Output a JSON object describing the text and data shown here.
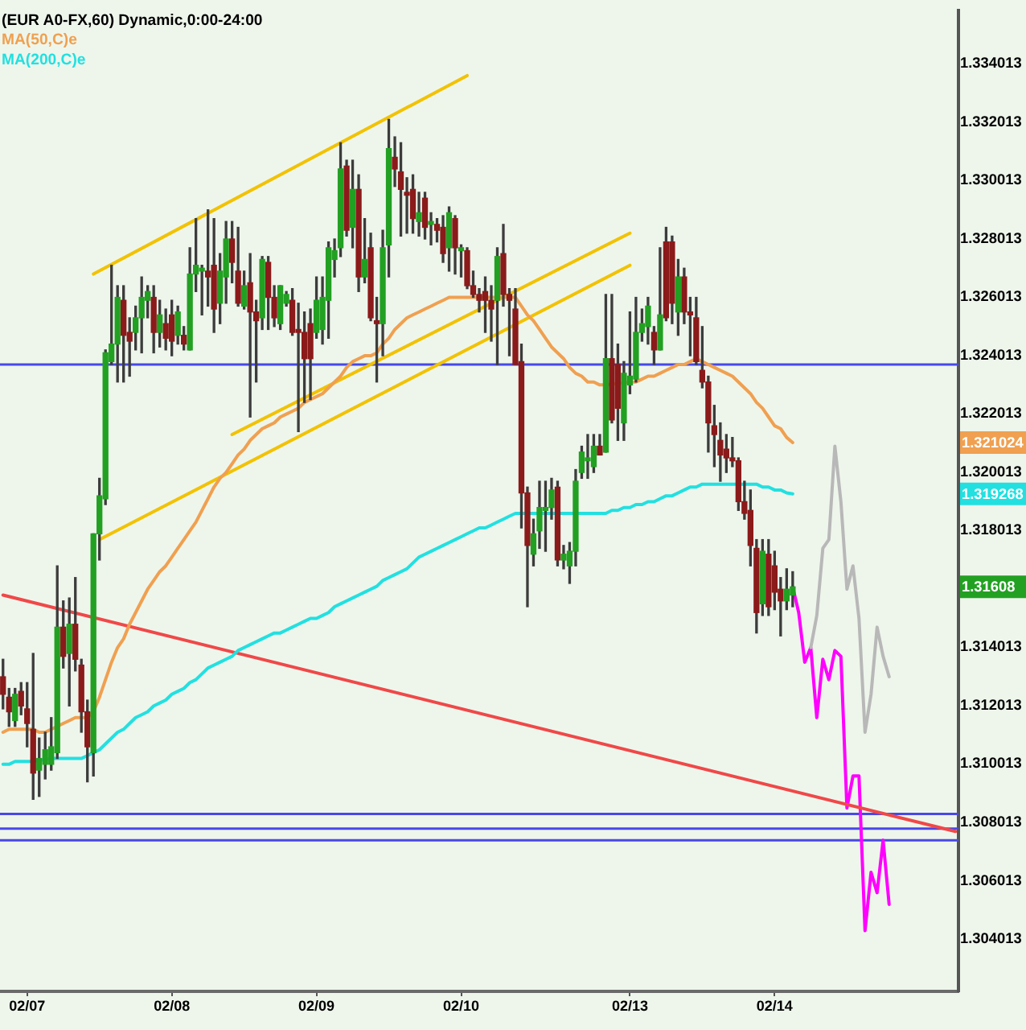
{
  "chart_data": {
    "type": "candlestick",
    "title": "(EUR A0-FX,60) Dynamic,0:00-24:00",
    "categories": [
      null,
      null,
      null,
      null,
      "02/07",
      null,
      null,
      null,
      null,
      null,
      null,
      null,
      null,
      null,
      null,
      null,
      null,
      null,
      null,
      null,
      null,
      null,
      null,
      null,
      null,
      null,
      null,
      null,
      "02/08",
      null,
      null,
      null,
      null,
      null,
      null,
      null,
      null,
      null,
      null,
      null,
      null,
      null,
      null,
      null,
      null,
      null,
      null,
      null,
      null,
      null,
      null,
      null,
      "02/09",
      null,
      null,
      null,
      null,
      null,
      null,
      null,
      null,
      null,
      null,
      null,
      null,
      null,
      null,
      null,
      null,
      null,
      null,
      null,
      null,
      null,
      null,
      null,
      "02/10",
      null,
      null,
      null,
      null,
      null,
      null,
      null,
      null,
      null,
      null,
      null,
      null,
      null,
      null,
      null,
      null,
      null,
      null,
      null,
      null,
      null,
      null,
      null,
      null,
      null,
      null,
      null,
      "02/13",
      null,
      null,
      null,
      null,
      null,
      null,
      null,
      null,
      null,
      null,
      null,
      null,
      null,
      null,
      null,
      null,
      null,
      null,
      null,
      null,
      null,
      null,
      null,
      "02/14",
      null,
      null,
      null,
      null,
      null,
      null,
      null,
      null,
      null,
      null,
      null,
      null,
      null,
      null,
      null,
      null,
      null,
      null,
      null,
      null,
      null,
      null,
      null,
      null,
      null,
      null,
      null,
      null,
      null,
      null
    ],
    "ohlc": [
      [
        1.313,
        1.3136,
        1.3119,
        1.3124
      ],
      [
        1.3123,
        1.3126,
        1.3113,
        1.3118
      ],
      [
        1.3115,
        1.3126,
        1.3113,
        1.3124
      ],
      [
        1.3125,
        1.3128,
        1.3117,
        1.312
      ],
      [
        1.3119,
        1.3128,
        1.3106,
        1.3114
      ],
      [
        1.3112,
        1.3138,
        1.3088,
        1.3097
      ],
      [
        1.3098,
        1.3109,
        1.3089,
        1.3102
      ],
      [
        1.31,
        1.3111,
        1.3095,
        1.3105
      ],
      [
        1.31,
        1.3116,
        1.3098,
        1.3106
      ],
      [
        1.3104,
        1.3168,
        1.3102,
        1.3147
      ],
      [
        1.3147,
        1.3156,
        1.3133,
        1.3137
      ],
      [
        1.3138,
        1.3157,
        1.312,
        1.3148
      ],
      [
        1.3148,
        1.3164,
        1.3132,
        1.3136
      ],
      [
        1.3134,
        1.3136,
        1.3111,
        1.3118
      ],
      [
        1.3118,
        1.3122,
        1.3094,
        1.3106
      ],
      [
        1.3104,
        1.3179,
        1.3096,
        1.3179
      ],
      [
        1.3179,
        1.3198,
        1.317,
        1.3192
      ],
      [
        1.3191,
        1.3242,
        1.3189,
        1.3241
      ],
      [
        1.3238,
        1.3271,
        1.3237,
        1.3244
      ],
      [
        1.3244,
        1.3264,
        1.3231,
        1.326
      ],
      [
        1.3259,
        1.3264,
        1.3231,
        1.3247
      ],
      [
        1.3248,
        1.3253,
        1.3233,
        1.3245
      ],
      [
        1.3248,
        1.3257,
        1.3242,
        1.3253
      ],
      [
        1.3253,
        1.3267,
        1.3241,
        1.326
      ],
      [
        1.3259,
        1.3264,
        1.3253,
        1.3262
      ],
      [
        1.326,
        1.3264,
        1.3241,
        1.3248
      ],
      [
        1.3248,
        1.3259,
        1.3243,
        1.3254
      ],
      [
        1.3251,
        1.3256,
        1.3242,
        1.3246
      ],
      [
        1.3254,
        1.3259,
        1.324,
        1.3245
      ],
      [
        1.3247,
        1.3257,
        1.3244,
        1.3255
      ],
      [
        1.3247,
        1.325,
        1.3242,
        1.3244
      ],
      [
        1.3242,
        1.3277,
        1.3242,
        1.3268
      ],
      [
        1.3268,
        1.3287,
        1.3262,
        1.3271
      ],
      [
        1.3269,
        1.3271,
        1.3254,
        1.327
      ],
      [
        1.3269,
        1.329,
        1.3257,
        1.3267
      ],
      [
        1.3271,
        1.3287,
        1.3248,
        1.3256
      ],
      [
        1.3258,
        1.3275,
        1.3251,
        1.3269
      ],
      [
        1.3267,
        1.3286,
        1.3258,
        1.328
      ],
      [
        1.328,
        1.3286,
        1.3265,
        1.3272
      ],
      [
        1.3269,
        1.3284,
        1.3257,
        1.3258
      ],
      [
        1.3257,
        1.3269,
        1.3256,
        1.3264
      ],
      [
        1.3265,
        1.3275,
        1.3219,
        1.3255
      ],
      [
        1.3255,
        1.3259,
        1.3231,
        1.3252
      ],
      [
        1.3253,
        1.3274,
        1.3249,
        1.3273
      ],
      [
        1.3272,
        1.3274,
        1.3249,
        1.326
      ],
      [
        1.326,
        1.3264,
        1.325,
        1.3253
      ],
      [
        1.3251,
        1.3264,
        1.3249,
        1.3264
      ],
      [
        1.3258,
        1.3262,
        1.3257,
        1.3261
      ],
      [
        1.3259,
        1.3263,
        1.3247,
        1.3248
      ],
      [
        1.3249,
        1.3258,
        1.3214,
        1.3248
      ],
      [
        1.3248,
        1.3255,
        1.3224,
        1.3239
      ],
      [
        1.3251,
        1.3256,
        1.3225,
        1.3239
      ],
      [
        1.3248,
        1.3267,
        1.3246,
        1.3259
      ],
      [
        1.3249,
        1.3267,
        1.3244,
        1.326
      ],
      [
        1.3259,
        1.3279,
        1.3246,
        1.3277
      ],
      [
        1.3273,
        1.328,
        1.3267,
        1.3276
      ],
      [
        1.3277,
        1.3313,
        1.3274,
        1.3304
      ],
      [
        1.3305,
        1.3307,
        1.3281,
        1.3283
      ],
      [
        1.3284,
        1.3307,
        1.3277,
        1.3297
      ],
      [
        1.3297,
        1.3302,
        1.3262,
        1.3267
      ],
      [
        1.3267,
        1.3287,
        1.3265,
        1.3273
      ],
      [
        1.3277,
        1.3282,
        1.3252,
        1.3253
      ],
      [
        1.3252,
        1.326,
        1.3231,
        1.3251
      ],
      [
        1.3251,
        1.3283,
        1.324,
        1.3277
      ],
      [
        1.3278,
        1.3321,
        1.3267,
        1.3311
      ],
      [
        1.3308,
        1.3315,
        1.3298,
        1.3304
      ],
      [
        1.3303,
        1.3313,
        1.3281,
        1.3297
      ],
      [
        1.3296,
        1.3301,
        1.3282,
        1.3295
      ],
      [
        1.3297,
        1.3302,
        1.3282,
        1.3287
      ],
      [
        1.3286,
        1.3296,
        1.3281,
        1.3289
      ],
      [
        1.3294,
        1.3296,
        1.328,
        1.3284
      ],
      [
        1.3285,
        1.3289,
        1.3278,
        1.3286
      ],
      [
        1.3285,
        1.3287,
        1.3279,
        1.3283
      ],
      [
        1.3284,
        1.3288,
        1.3272,
        1.3275
      ],
      [
        1.3277,
        1.3291,
        1.3269,
        1.3289
      ],
      [
        1.3287,
        1.3288,
        1.3268,
        1.3277
      ],
      [
        1.3276,
        1.3278,
        1.3267,
        1.3277
      ],
      [
        1.3276,
        1.3277,
        1.3263,
        1.3264
      ],
      [
        1.3264,
        1.3269,
        1.326,
        1.3261
      ],
      [
        1.3261,
        1.3263,
        1.3255,
        1.3259
      ],
      [
        1.3262,
        1.3267,
        1.3248,
        1.3259
      ],
      [
        1.3259,
        1.3264,
        1.3245,
        1.3256
      ],
      [
        1.3259,
        1.3277,
        1.3237,
        1.3274
      ],
      [
        1.3275,
        1.3285,
        1.3257,
        1.3261
      ],
      [
        1.3261,
        1.3263,
        1.324,
        1.3259
      ],
      [
        1.3256,
        1.3263,
        1.3237,
        1.3237
      ],
      [
        1.3238,
        1.3244,
        1.3181,
        1.3193
      ],
      [
        1.3193,
        1.3195,
        1.3154,
        1.3175
      ],
      [
        1.3172,
        1.3184,
        1.3168,
        1.3179
      ],
      [
        1.318,
        1.3197,
        1.3174,
        1.3188
      ],
      [
        1.3187,
        1.3197,
        1.3173,
        1.3188
      ],
      [
        1.3188,
        1.3198,
        1.3184,
        1.3194
      ],
      [
        1.3195,
        1.3197,
        1.3168,
        1.317
      ],
      [
        1.317,
        1.3175,
        1.3167,
        1.3172
      ],
      [
        1.3168,
        1.3176,
        1.3162,
        1.3173
      ],
      [
        1.3173,
        1.3201,
        1.3168,
        1.3197
      ],
      [
        1.32,
        1.3209,
        1.3198,
        1.3207
      ],
      [
        1.3204,
        1.3213,
        1.3198,
        1.3205
      ],
      [
        1.3202,
        1.3213,
        1.32,
        1.3209
      ],
      [
        1.3209,
        1.3213,
        1.3206,
        1.3206
      ],
      [
        1.3207,
        1.3261,
        1.3207,
        1.3239
      ],
      [
        1.3239,
        1.3261,
        1.3217,
        1.3218
      ],
      [
        1.3237,
        1.3244,
        1.3211,
        1.3222
      ],
      [
        1.3217,
        1.3238,
        1.3211,
        1.3234
      ],
      [
        1.323,
        1.3255,
        1.3227,
        1.3233
      ],
      [
        1.3232,
        1.326,
        1.3231,
        1.3248
      ],
      [
        1.3248,
        1.3256,
        1.3245,
        1.3251
      ],
      [
        1.325,
        1.326,
        1.3244,
        1.3257
      ],
      [
        1.3248,
        1.325,
        1.3237,
        1.3242
      ],
      [
        1.3242,
        1.3277,
        1.3242,
        1.3254
      ],
      [
        1.3279,
        1.3284,
        1.3252,
        1.3253
      ],
      [
        1.3279,
        1.3281,
        1.3251,
        1.3258
      ],
      [
        1.3255,
        1.3273,
        1.3247,
        1.3267
      ],
      [
        1.3267,
        1.327,
        1.3251,
        1.3255
      ],
      [
        1.3255,
        1.326,
        1.324,
        1.3254
      ],
      [
        1.3253,
        1.326,
        1.3237,
        1.3238
      ],
      [
        1.3235,
        1.325,
        1.3229,
        1.3231
      ],
      [
        1.3231,
        1.3233,
        1.3207,
        1.3217
      ],
      [
        1.3216,
        1.3223,
        1.3202,
        1.3213
      ],
      [
        1.3211,
        1.3217,
        1.3197,
        1.3206
      ],
      [
        1.3208,
        1.3213,
        1.32,
        1.3205
      ],
      [
        1.3205,
        1.3212,
        1.3202,
        1.3204
      ],
      [
        1.3204,
        1.3205,
        1.3187,
        1.319
      ],
      [
        1.319,
        1.3197,
        1.3184,
        1.3186
      ],
      [
        1.3187,
        1.3194,
        1.3168,
        1.3175
      ],
      [
        1.3174,
        1.3177,
        1.3145,
        1.3152
      ],
      [
        1.3155,
        1.3177,
        1.3151,
        1.3173
      ],
      [
        1.3172,
        1.3177,
        1.3151,
        1.3154
      ],
      [
        1.3168,
        1.3173,
        1.3153,
        1.3159
      ],
      [
        1.316,
        1.3164,
        1.3144,
        1.3156
      ],
      [
        1.3156,
        1.3167,
        1.3153,
        1.316
      ],
      [
        1.3158,
        1.3166,
        1.3154,
        1.31608
      ],
      null,
      null,
      null,
      null,
      null,
      null,
      null,
      null,
      null,
      null,
      null,
      null,
      null,
      null,
      null,
      null,
      null,
      null,
      null,
      null,
      null,
      null,
      null,
      null,
      null,
      null,
      null
    ],
    "colors": [
      "#8b1a1a",
      "#8b1a1a",
      "#22a022",
      "#8b1a1a",
      "#8b1a1a",
      "#8b1a1a",
      "#22a022",
      "#22a022",
      "#22a022",
      "#22a022",
      "#8b1a1a",
      "#22a022",
      "#8b1a1a",
      "#8b1a1a",
      "#8b1a1a",
      "#22a022",
      "#22a022",
      "#22a022",
      "#22a022",
      "#22a022",
      "#8b1a1a",
      "#8b1a1a",
      "#22a022",
      "#22a022",
      "#22a022",
      "#8b1a1a",
      "#22a022",
      "#8b1a1a",
      "#8b1a1a",
      "#22a022",
      "#8b1a1a",
      "#22a022",
      "#22a022",
      "#22a022",
      "#8b1a1a",
      "#8b1a1a",
      "#22a022",
      "#22a022",
      "#8b1a1a",
      "#8b1a1a",
      "#22a022",
      "#8b1a1a",
      "#8b1a1a",
      "#22a022",
      "#8b1a1a",
      "#8b1a1a",
      "#22a022",
      "#22a022",
      "#8b1a1a",
      "#8b1a1a",
      "#8b1a1a",
      "#8b1a1a",
      "#22a022",
      "#22a022",
      "#22a022",
      "#22a022",
      "#22a022",
      "#8b1a1a",
      "#22a022",
      "#8b1a1a",
      "#22a022",
      "#8b1a1a",
      "#8b1a1a",
      "#22a022",
      "#22a022",
      "#8b1a1a",
      "#8b1a1a",
      "#8b1a1a",
      "#8b1a1a",
      "#22a022",
      "#8b1a1a",
      "#22a022",
      "#8b1a1a",
      "#8b1a1a",
      "#22a022",
      "#8b1a1a",
      "#22a022",
      "#8b1a1a",
      "#8b1a1a",
      "#8b1a1a",
      "#8b1a1a",
      "#8b1a1a",
      "#22a022",
      "#8b1a1a",
      "#8b1a1a",
      "#8b1a1a",
      "#8b1a1a",
      "#8b1a1a",
      "#22a022",
      "#22a022",
      "#22a022",
      "#22a022",
      "#8b1a1a",
      "#22a022",
      "#22a022",
      "#22a022",
      "#22a022",
      "#22a022",
      "#22a022",
      "#8b1a1a",
      "#22a022",
      "#8b1a1a",
      "#8b1a1a",
      "#22a022",
      "#22a022",
      "#22a022",
      "#22a022",
      "#22a022",
      "#8b1a1a",
      "#22a022",
      "#8b1a1a",
      "#8b1a1a",
      "#22a022",
      "#8b1a1a",
      "#8b1a1a",
      "#8b1a1a",
      "#8b1a1a",
      "#8b1a1a",
      "#8b1a1a",
      "#8b1a1a",
      "#8b1a1a",
      "#8b1a1a",
      "#8b1a1a",
      "#8b1a1a",
      "#8b1a1a",
      "#8b1a1a",
      "#22a022",
      "#8b1a1a",
      "#8b1a1a",
      "#8b1a1a",
      "#22a022",
      "#22a022",
      null,
      null,
      null,
      null,
      null,
      null,
      null,
      null,
      null,
      null,
      null,
      null,
      null,
      null,
      null,
      null,
      null,
      null,
      null,
      null,
      null,
      null,
      null,
      null,
      null,
      null,
      null
    ],
    "series": [
      {
        "name": "MA(50,C)e",
        "type": "line",
        "color": "#f0a050",
        "values": [
          1.3111,
          1.3112,
          1.3112,
          1.3112,
          1.3112,
          1.3112,
          1.3111,
          1.3111,
          1.3112,
          1.3113,
          1.3114,
          1.3115,
          1.3116,
          1.3116,
          1.3116,
          1.3118,
          1.3123,
          1.3129,
          1.3135,
          1.314,
          1.3143,
          1.3148,
          1.3152,
          1.3156,
          1.316,
          1.3163,
          1.3166,
          1.3168,
          1.3171,
          1.3174,
          1.3177,
          1.318,
          1.3183,
          1.3187,
          1.3191,
          1.3195,
          1.3198,
          1.32,
          1.3203,
          1.3206,
          1.3208,
          1.3211,
          1.3213,
          1.3215,
          1.3216,
          1.3217,
          1.3219,
          1.322,
          1.3221,
          1.3222,
          1.3224,
          1.3225,
          1.3226,
          1.3227,
          1.3229,
          1.3231,
          1.3233,
          1.3236,
          1.3238,
          1.3239,
          1.324,
          1.324,
          1.3241,
          1.3244,
          1.3246,
          1.3249,
          1.3251,
          1.3253,
          1.3254,
          1.3255,
          1.3256,
          1.3257,
          1.3258,
          1.3259,
          1.326,
          1.326,
          1.326,
          1.326,
          1.326,
          1.326,
          1.326,
          1.326,
          1.326,
          1.326,
          1.326,
          1.326,
          1.3257,
          1.3254,
          1.3252,
          1.3249,
          1.3246,
          1.3243,
          1.3241,
          1.3239,
          1.3236,
          1.3234,
          1.3233,
          1.3231,
          1.3231,
          1.323,
          1.323,
          null,
          null,
          null,
          1.3231,
          1.3231,
          1.3232,
          1.3233,
          1.3233,
          1.3234,
          1.3235,
          1.3236,
          1.3237,
          1.3237,
          1.3238,
          1.3239,
          1.3238,
          1.3237,
          1.3236,
          1.3235,
          1.3234,
          1.3233,
          1.3231,
          1.3229,
          1.3227,
          1.3224,
          1.3222,
          1.3219,
          1.3216,
          1.3215,
          1.3212,
          1.321024,
          null,
          null,
          null,
          null,
          null,
          null,
          null,
          null,
          null,
          null,
          null,
          null,
          null,
          null,
          null,
          null,
          null,
          null,
          null,
          null,
          null,
          null,
          null,
          null,
          null,
          null,
          null
        ]
      },
      {
        "name": "MA(200,C)e",
        "type": "line",
        "color": "#22e0e0",
        "values": [
          1.31,
          1.31,
          1.3101,
          1.3101,
          1.3101,
          1.3101,
          null,
          null,
          1.3102,
          1.3102,
          1.3102,
          1.3102,
          1.3102,
          1.3102,
          1.3103,
          1.3104,
          1.3105,
          1.3107,
          1.3109,
          1.3111,
          1.3112,
          1.3114,
          1.3116,
          1.3117,
          1.3118,
          1.312,
          1.3121,
          1.3122,
          1.3124,
          1.3125,
          1.3126,
          1.3128,
          1.3129,
          1.3131,
          1.3133,
          1.3134,
          1.3135,
          1.3136,
          1.3137,
          1.3139,
          1.314,
          1.3141,
          1.3142,
          1.3143,
          1.3144,
          1.3145,
          1.3145,
          1.3146,
          1.3147,
          1.3148,
          1.3149,
          1.315,
          1.315,
          1.3151,
          1.3152,
          1.3154,
          1.3155,
          1.3156,
          1.3157,
          1.3158,
          1.3159,
          1.316,
          1.3161,
          1.3163,
          1.3164,
          1.3165,
          1.3166,
          1.3167,
          1.3169,
          1.3171,
          1.3172,
          1.3173,
          1.3174,
          1.3175,
          1.3176,
          1.3177,
          1.3178,
          1.3179,
          1.318,
          1.3181,
          1.3181,
          1.3182,
          1.3183,
          1.3184,
          1.3185,
          1.3186,
          1.3186,
          1.3186,
          1.3186,
          1.3186,
          1.3186,
          1.3186,
          1.3186,
          1.3186,
          1.3186,
          1.3186,
          1.3186,
          1.3186,
          1.3186,
          1.3186,
          1.3186,
          1.3187,
          1.3187,
          1.3188,
          1.3188,
          1.3189,
          1.3189,
          1.319,
          1.319,
          1.3191,
          1.3192,
          1.3192,
          1.3193,
          1.3194,
          1.3195,
          1.3195,
          1.3196,
          1.3196,
          1.3196,
          1.3196,
          1.3196,
          1.3196,
          1.3196,
          1.3196,
          1.3196,
          1.3196,
          1.3195,
          1.3195,
          1.3194,
          1.3194,
          1.3193,
          1.319268,
          null,
          null,
          null,
          null,
          null,
          null,
          null,
          null,
          null,
          null,
          null,
          null,
          null,
          null,
          null,
          null,
          null,
          null,
          null,
          null,
          null,
          null,
          null,
          null,
          null,
          null,
          null
        ]
      },
      {
        "type": "line",
        "color": "#f2c200",
        "values": [
          null,
          null,
          null,
          null,
          null,
          null,
          null,
          null,
          null,
          null,
          null,
          null,
          null,
          null,
          null,
          1.3268,
          null,
          null,
          null,
          null,
          null,
          null,
          null,
          null,
          null,
          null,
          null,
          null,
          null,
          null,
          null,
          null,
          null,
          null,
          null,
          null,
          null,
          null,
          null,
          null,
          null,
          null,
          null,
          null,
          null,
          null,
          null,
          null,
          null,
          null,
          null,
          null,
          null,
          null,
          null,
          null,
          null,
          null,
          null,
          null,
          null,
          null,
          null,
          null,
          null,
          null,
          null,
          null,
          null,
          null,
          null,
          null,
          null,
          null,
          null,
          null,
          null,
          1.3336,
          null,
          null,
          null,
          null,
          null,
          null,
          null,
          null,
          null,
          null,
          null,
          null,
          null,
          null,
          null,
          null,
          null,
          null,
          null,
          null,
          null,
          null,
          null,
          null,
          null,
          null,
          null,
          null,
          null,
          null,
          null,
          null,
          null,
          null,
          null,
          null,
          null,
          null,
          null,
          null,
          null,
          null,
          null,
          null,
          null,
          null,
          null,
          null,
          null,
          null,
          null,
          null,
          null,
          null,
          null,
          null,
          null,
          null,
          null,
          null,
          null,
          null,
          null,
          null,
          null,
          null,
          null,
          null,
          null,
          null,
          null,
          null,
          null,
          null,
          null,
          null,
          null,
          null,
          null,
          null,
          null
        ]
      },
      {
        "type": "line",
        "color": "#f2c200",
        "values": [
          null,
          null,
          null,
          null,
          null,
          null,
          null,
          null,
          null,
          null,
          null,
          null,
          null,
          null,
          null,
          null,
          1.3177,
          null,
          null,
          null,
          null,
          null,
          null,
          null,
          null,
          null,
          null,
          null,
          null,
          null,
          null,
          null,
          null,
          null,
          null,
          null,
          null,
          null,
          null,
          null,
          null,
          null,
          null,
          null,
          null,
          null,
          null,
          null,
          null,
          null,
          null,
          null,
          null,
          null,
          null,
          null,
          null,
          null,
          null,
          null,
          null,
          null,
          null,
          null,
          null,
          null,
          null,
          null,
          null,
          null,
          null,
          null,
          null,
          null,
          null,
          null,
          null,
          null,
          null,
          null,
          null,
          null,
          null,
          null,
          null,
          null,
          null,
          null,
          null,
          null,
          null,
          null,
          null,
          null,
          null,
          null,
          null,
          null,
          null,
          null,
          null,
          null,
          null,
          null,
          1.3271,
          null,
          null,
          null,
          null,
          null,
          null,
          null,
          null,
          null,
          null,
          null,
          null,
          null,
          null,
          null,
          null,
          null,
          null,
          null,
          null,
          null,
          null,
          null,
          null,
          null,
          null,
          null,
          null,
          null,
          null,
          null,
          null,
          null,
          null,
          null,
          null,
          null,
          null,
          null,
          null,
          null,
          null,
          null,
          null,
          null,
          null,
          null,
          null,
          null,
          null,
          null,
          null,
          null,
          null
        ]
      },
      {
        "type": "line",
        "color": "#f2c200",
        "values": [
          null,
          null,
          null,
          null,
          null,
          null,
          null,
          null,
          null,
          null,
          null,
          null,
          null,
          null,
          null,
          null,
          null,
          null,
          null,
          null,
          null,
          null,
          null,
          null,
          null,
          null,
          null,
          null,
          null,
          null,
          null,
          null,
          null,
          null,
          null,
          null,
          null,
          null,
          1.3213,
          null,
          null,
          null,
          null,
          null,
          null,
          null,
          null,
          null,
          null,
          null,
          null,
          null,
          null,
          null,
          null,
          null,
          null,
          null,
          null,
          null,
          null,
          null,
          null,
          null,
          null,
          null,
          null,
          null,
          null,
          null,
          null,
          null,
          null,
          null,
          null,
          null,
          null,
          null,
          null,
          null,
          null,
          null,
          null,
          null,
          null,
          null,
          null,
          null,
          null,
          null,
          null,
          null,
          null,
          null,
          null,
          null,
          null,
          null,
          null,
          null,
          null,
          null,
          null,
          null,
          1.3282,
          null,
          null,
          null,
          null,
          null,
          null,
          null,
          null,
          null,
          null,
          null,
          null,
          null,
          null,
          null,
          null,
          null,
          null,
          null,
          null,
          null,
          null,
          null,
          null,
          null,
          null,
          null,
          null,
          null,
          null,
          null,
          null,
          null,
          null,
          null,
          null,
          null,
          null,
          null,
          null,
          null,
          null,
          null,
          null,
          null,
          null,
          null,
          null,
          null,
          null,
          null,
          null,
          null,
          null
        ]
      },
      {
        "type": "line",
        "color": "#f04848",
        "values": [
          1.3158,
          null,
          null,
          null,
          null,
          null,
          null,
          null,
          null,
          null,
          null,
          null,
          null,
          null,
          null,
          null,
          null,
          null,
          null,
          null,
          null,
          null,
          null,
          null,
          null,
          null,
          null,
          null,
          null,
          null,
          null,
          null,
          null,
          null,
          null,
          null,
          null,
          null,
          null,
          null,
          null,
          null,
          null,
          null,
          null,
          null,
          null,
          null,
          null,
          null,
          null,
          null,
          null,
          null,
          null,
          null,
          null,
          null,
          null,
          null,
          null,
          null,
          null,
          null,
          null,
          null,
          null,
          null,
          null,
          null,
          null,
          null,
          null,
          null,
          null,
          null,
          null,
          null,
          null,
          null,
          null,
          null,
          null,
          null,
          null,
          null,
          null,
          null,
          null,
          null,
          null,
          null,
          null,
          null,
          null,
          null,
          null,
          null,
          null,
          null,
          null,
          null,
          null,
          null,
          null,
          null,
          null,
          null,
          null,
          null,
          null,
          null,
          null,
          null,
          null,
          null,
          null,
          null,
          null,
          null,
          null,
          null,
          null,
          null,
          null,
          null,
          null,
          null,
          null,
          null,
          null,
          null,
          null,
          null,
          null,
          null,
          null,
          null,
          null,
          null,
          null,
          null,
          null,
          null,
          null,
          null,
          null,
          null,
          null,
          null,
          null,
          null,
          null,
          null,
          null,
          null,
          null,
          null,
          1.3077
        ]
      },
      {
        "type": "line",
        "color": "#b8b8b8",
        "values": [
          null,
          null,
          null,
          null,
          null,
          null,
          null,
          null,
          null,
          null,
          null,
          null,
          null,
          null,
          null,
          null,
          null,
          null,
          null,
          null,
          null,
          null,
          null,
          null,
          null,
          null,
          null,
          null,
          null,
          null,
          null,
          null,
          null,
          null,
          null,
          null,
          null,
          null,
          null,
          null,
          null,
          null,
          null,
          null,
          null,
          null,
          null,
          null,
          null,
          null,
          null,
          null,
          null,
          null,
          null,
          null,
          null,
          null,
          null,
          null,
          null,
          null,
          null,
          null,
          null,
          null,
          null,
          null,
          null,
          null,
          null,
          null,
          null,
          null,
          null,
          null,
          null,
          null,
          null,
          null,
          null,
          null,
          null,
          null,
          null,
          null,
          null,
          null,
          null,
          null,
          null,
          null,
          null,
          null,
          null,
          null,
          null,
          null,
          null,
          null,
          null,
          null,
          null,
          null,
          null,
          null,
          null,
          null,
          null,
          null,
          null,
          null,
          null,
          null,
          null,
          null,
          null,
          null,
          null,
          null,
          null,
          null,
          null,
          null,
          null,
          null,
          null,
          null,
          null,
          null,
          null,
          null,
          null,
          null,
          1.314,
          1.3151,
          1.3174,
          1.3177,
          1.3209,
          1.319,
          1.316,
          1.3168,
          1.315,
          1.3111,
          1.3124,
          1.3147,
          1.3137,
          1.313,
          null,
          null,
          null,
          null,
          null,
          null,
          null,
          null,
          null,
          null,
          null
        ]
      },
      {
        "type": "line",
        "color": "#ff00ff",
        "values": [
          null,
          null,
          null,
          null,
          null,
          null,
          null,
          null,
          null,
          null,
          null,
          null,
          null,
          null,
          null,
          null,
          null,
          null,
          null,
          null,
          null,
          null,
          null,
          null,
          null,
          null,
          null,
          null,
          null,
          null,
          null,
          null,
          null,
          null,
          null,
          null,
          null,
          null,
          null,
          null,
          null,
          null,
          null,
          null,
          null,
          null,
          null,
          null,
          null,
          null,
          null,
          null,
          null,
          null,
          null,
          null,
          null,
          null,
          null,
          null,
          null,
          null,
          null,
          null,
          null,
          null,
          null,
          null,
          null,
          null,
          null,
          null,
          null,
          null,
          null,
          null,
          null,
          null,
          null,
          null,
          null,
          null,
          null,
          null,
          null,
          null,
          null,
          null,
          null,
          null,
          null,
          null,
          null,
          null,
          null,
          null,
          null,
          null,
          null,
          null,
          null,
          null,
          null,
          null,
          null,
          null,
          null,
          null,
          null,
          null,
          null,
          null,
          null,
          null,
          null,
          null,
          null,
          null,
          null,
          null,
          null,
          null,
          null,
          null,
          null,
          null,
          null,
          null,
          null,
          null,
          null,
          1.31608,
          1.3152,
          1.3135,
          1.314,
          1.3116,
          1.3136,
          1.3129,
          1.3139,
          1.3137,
          1.3085,
          1.3096,
          1.3096,
          1.3043,
          1.3063,
          1.3056,
          1.3074,
          1.3052,
          null,
          null,
          null,
          null,
          null,
          null,
          null,
          null,
          null,
          null,
          null
        ]
      }
    ],
    "ylim": [
      1.30222,
      1.33583
    ],
    "yticks": [
      1.304013,
      1.306013,
      1.308013,
      1.310013,
      1.312013,
      1.314013,
      1.318013,
      1.320013,
      1.322013,
      1.324013,
      1.326013,
      1.328013,
      1.330013,
      1.332013,
      1.334013
    ],
    "ref_lines": [
      {
        "axis": "y",
        "value": 1.3237,
        "color": "#4848e8"
      },
      {
        "axis": "y",
        "value": 1.3083,
        "color": "#4848e8"
      },
      {
        "axis": "y",
        "value": 1.3078,
        "color": "#4848e8"
      },
      {
        "axis": "y",
        "value": 1.3074,
        "color": "#4848e8"
      }
    ],
    "annotations": [
      {
        "text": "1.321024",
        "y": 1.321024
      },
      {
        "text": "1.319268",
        "y": 1.319268
      },
      "1.31608"
    ],
    "legend": "top left"
  }
}
